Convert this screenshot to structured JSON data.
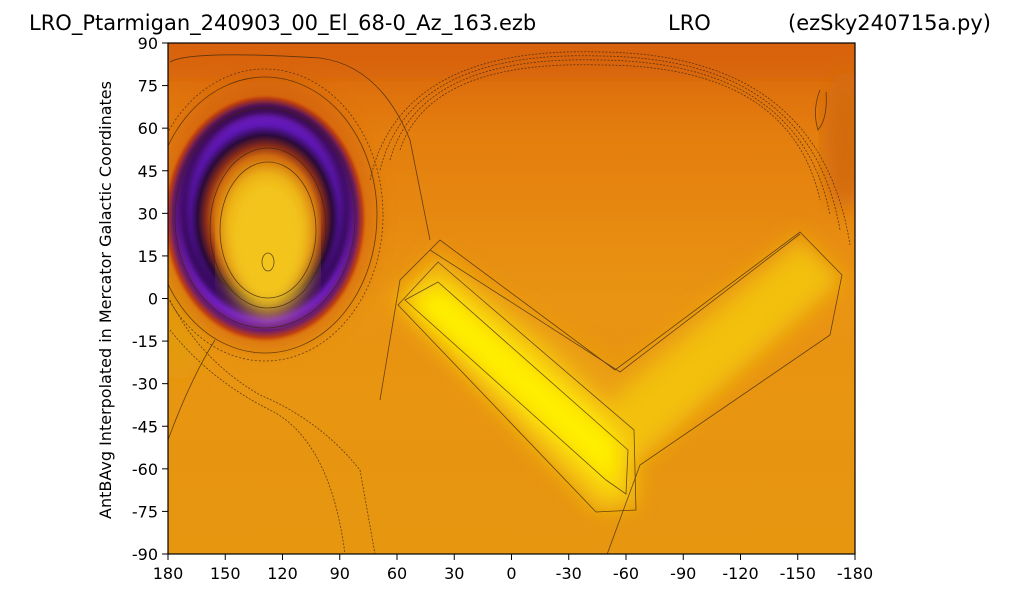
{
  "chart_data": {
    "type": "heatmap",
    "title_parts": [
      "LRO_Ptarmigan_240903_00_El_68-0_Az_163.ezb",
      "LRO",
      "(ezSky240715a.py)"
    ],
    "xlabel": "",
    "ylabel": "AntBAvg Interpolated in Mercator Galactic Coordinates",
    "x_axis": {
      "range": [
        180,
        -180
      ],
      "direction": "decreasing",
      "ticks": [
        180,
        150,
        120,
        90,
        60,
        30,
        0,
        -30,
        -60,
        -90,
        -120,
        -150,
        -180
      ]
    },
    "y_axis": {
      "range": [
        -90,
        90
      ],
      "ticks": [
        90,
        75,
        60,
        45,
        30,
        15,
        0,
        -15,
        -30,
        -45,
        -60,
        -75,
        -90
      ]
    },
    "colormap": [
      "#3b0f70",
      "#7a1fd1",
      "#2a0a3a",
      "#b5380e",
      "#d96a0a",
      "#e99a12",
      "#f3c20c",
      "#ffff00"
    ],
    "grid": false,
    "colorbar": false,
    "features": [
      {
        "kind": "ring-minimum",
        "center_x": 125,
        "center_y": 30,
        "note": "dark purple ring with bright core"
      },
      {
        "kind": "ridge-maximum",
        "from": [
          45,
          -5
        ],
        "to": [
          -50,
          -60
        ],
        "note": "bright yellow diagonal band"
      },
      {
        "kind": "ridge-maximum",
        "from": [
          -55,
          -40
        ],
        "to": [
          -150,
          10
        ],
        "note": "yellow band rising right"
      }
    ]
  }
}
